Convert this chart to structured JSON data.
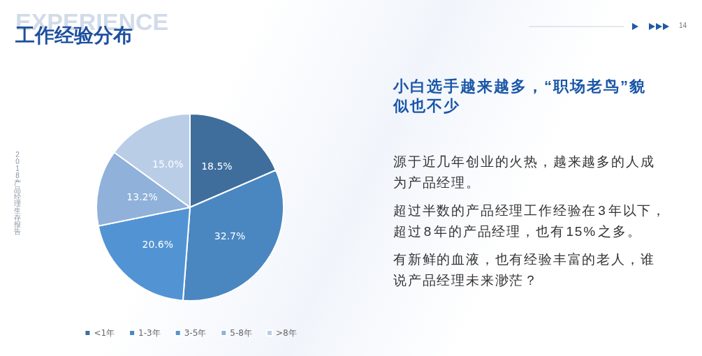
{
  "chart_data": {
    "type": "pie",
    "title": "工作经验分布",
    "subtitle": "小白选手越来越多，“职场老鸟”貌似也不少",
    "categories": [
      "<1年",
      "1-3年",
      "3-5年",
      "5-8年",
      ">8年"
    ],
    "values": [
      18.5,
      32.7,
      20.6,
      13.2,
      15.0
    ],
    "value_labels": [
      "18.5%",
      "32.7%",
      "20.6%",
      "13.2%",
      "15.0%"
    ],
    "colors": [
      "#3f6e9d",
      "#4a87c0",
      "#5294d3",
      "#8fb1da",
      "#b9cde6"
    ],
    "legend": "bottom",
    "annotations": [
      "EXPERIENCE",
      "2018产品经理生存报告",
      "14",
      "源于近几年创业的火热，越来越多的人成为产品经理。",
      "超过半数的产品经理工作经验在 3 年以下，超过 8 年的产品经理，也有 15% 之多。",
      "有新鲜的血液，也有经验丰富的老人，谁说产品经理未来渺茫？"
    ]
  }
}
